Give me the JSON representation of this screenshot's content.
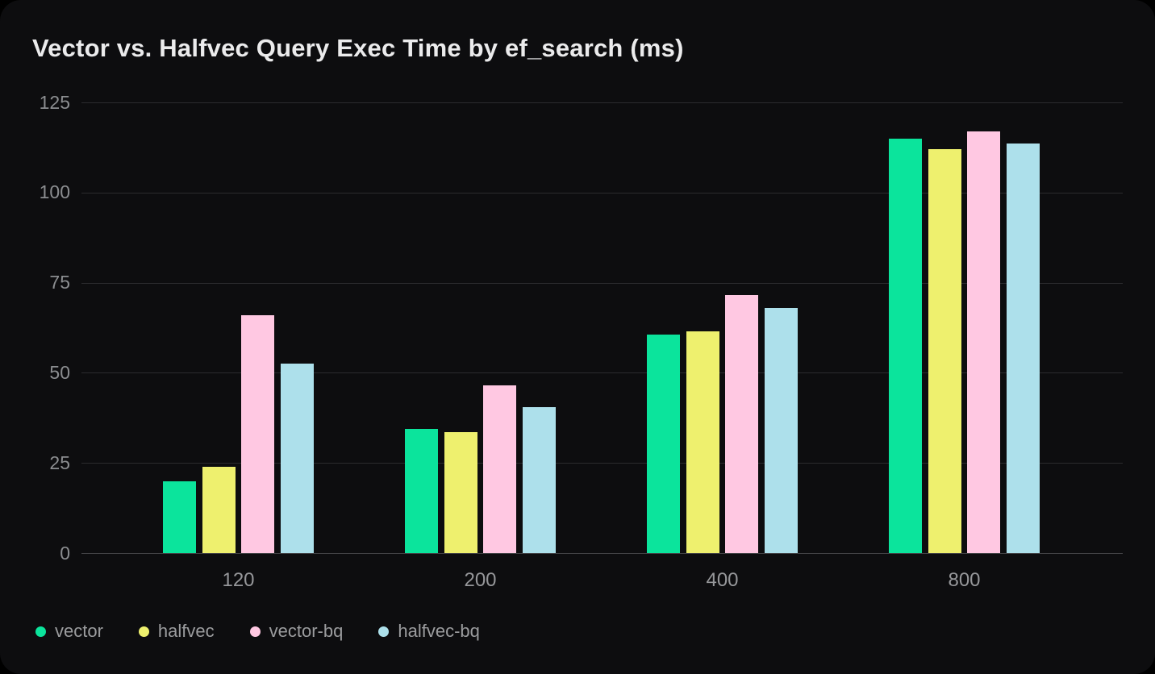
{
  "title": "Vector vs. Halfvec Query Exec Time by ef_search (ms)",
  "colors": {
    "card_background": "#0d0d0f",
    "page_background": "#000000",
    "gridline": "#2b2b2e",
    "axis_baseline": "#434346",
    "title_text": "#ebebec",
    "tick_text": "#8b8d90",
    "legend_text": "#9b9c9e"
  },
  "chart_data": {
    "type": "bar",
    "title": "Vector vs. Halfvec Query Exec Time by ef_search (ms)",
    "categories": [
      "120",
      "200",
      "400",
      "800"
    ],
    "series": [
      {
        "name": "vector",
        "color": "#0be49c",
        "values": [
          20,
          34.5,
          60.5,
          115
        ]
      },
      {
        "name": "halfvec",
        "color": "#eef06e",
        "values": [
          24,
          33.5,
          61.5,
          112
        ]
      },
      {
        "name": "vector-bq",
        "color": "#ffc8e2",
        "values": [
          66,
          46.5,
          71.5,
          117
        ]
      },
      {
        "name": "halfvec-bq",
        "color": "#ade0eb",
        "values": [
          52.5,
          40.5,
          68,
          113.5
        ]
      }
    ],
    "xlabel": "",
    "ylabel": "",
    "ylim": [
      0,
      125
    ],
    "yticks": [
      0,
      25,
      50,
      75,
      100,
      125
    ],
    "grid": true,
    "legend_position": "bottom-left"
  }
}
